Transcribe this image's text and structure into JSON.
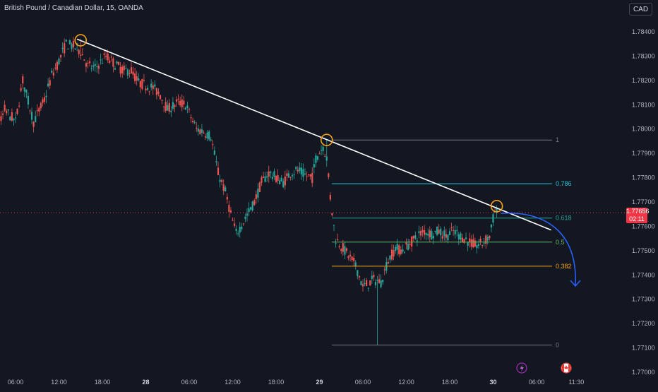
{
  "header": {
    "title": "British Pound / Canadian Dollar, 15, OANDA",
    "currency_button": "CAD"
  },
  "price_badge": {
    "price": "1.77656",
    "countdown": "02:11"
  },
  "colors": {
    "background": "#131722",
    "bull": "#26a69a",
    "bear": "#ef5350",
    "trendline": "#ffffff",
    "marker": "#f7a21b",
    "projection": "#2962ff"
  },
  "chart_data": {
    "type": "candlestick",
    "y_axis": {
      "labels": [
        "1.78400",
        "1.78300",
        "1.78200",
        "1.78100",
        "1.78000",
        "1.77900",
        "1.77800",
        "1.77700",
        "1.77600",
        "1.77500",
        "1.77400",
        "1.77300",
        "1.77200",
        "1.77100",
        "1.77000"
      ],
      "range": [
        1.7698,
        1.78455
      ]
    },
    "x_axis": {
      "labels": [
        "06:00",
        "12:00",
        "18:00",
        "28",
        "06:00",
        "12:00",
        "18:00",
        "29",
        "06:00",
        "12:00",
        "18:00",
        "30",
        "06:00",
        "11:30"
      ],
      "bold": [
        "28",
        "29",
        "30"
      ]
    },
    "trendline": {
      "from": [
        "27 14:30",
        1.7837
      ],
      "to": [
        "30 08:00",
        1.77585
      ]
    },
    "touch_points": [
      {
        "time": "27 15:00",
        "price": 1.78365
      },
      {
        "time": "29 01:00",
        "price": 1.77955
      },
      {
        "time": "30 00:30",
        "price": 1.77683
      }
    ],
    "fibonacci": {
      "high": 1.77955,
      "low": 1.77112,
      "levels": [
        {
          "label": "1",
          "value": 1.77955,
          "color": "#787b86"
        },
        {
          "label": "0.786",
          "value": 1.77775,
          "color": "#26c6da"
        },
        {
          "label": "0.618",
          "value": 1.77634,
          "color": "#26a69a"
        },
        {
          "label": "0.5",
          "value": 1.77535,
          "color": "#66bb6a"
        },
        {
          "label": "0.382",
          "value": 1.77436,
          "color": "#f7a21b"
        },
        {
          "label": "0",
          "value": 1.77112,
          "color": "#787b86"
        }
      ]
    },
    "current_price": 1.77656,
    "projection": "arrow pointing down from current price",
    "event_icons": [
      "lightning-icon",
      "canada-flag-icon"
    ],
    "grid": false
  }
}
